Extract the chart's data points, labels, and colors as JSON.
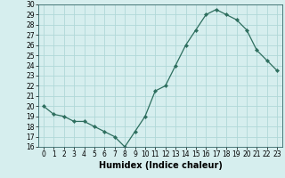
{
  "x": [
    0,
    1,
    2,
    3,
    4,
    5,
    6,
    7,
    8,
    9,
    10,
    11,
    12,
    13,
    14,
    15,
    16,
    17,
    18,
    19,
    20,
    21,
    22,
    23
  ],
  "y": [
    20.0,
    19.2,
    19.0,
    18.5,
    18.5,
    18.0,
    17.5,
    17.0,
    16.0,
    17.5,
    19.0,
    21.5,
    22.0,
    24.0,
    26.0,
    27.5,
    29.0,
    29.5,
    29.0,
    28.5,
    27.5,
    25.5,
    24.5,
    23.5
  ],
  "xlabel": "Humidex (Indice chaleur)",
  "xlim": [
    -0.5,
    23.5
  ],
  "ylim": [
    16,
    30
  ],
  "yticks": [
    16,
    17,
    18,
    19,
    20,
    21,
    22,
    23,
    24,
    25,
    26,
    27,
    28,
    29,
    30
  ],
  "xticks": [
    0,
    1,
    2,
    3,
    4,
    5,
    6,
    7,
    8,
    9,
    10,
    11,
    12,
    13,
    14,
    15,
    16,
    17,
    18,
    19,
    20,
    21,
    22,
    23
  ],
  "xtick_labels": [
    "0",
    "1",
    "2",
    "3",
    "4",
    "5",
    "6",
    "7",
    "8",
    "9",
    "10",
    "11",
    "12",
    "13",
    "14",
    "15",
    "16",
    "17",
    "18",
    "19",
    "20",
    "21",
    "22",
    "23"
  ],
  "line_color": "#2d6e5e",
  "marker_color": "#2d6e5e",
  "bg_color": "#d6eeee",
  "grid_color": "#b0d8d8",
  "tick_color": "#000000",
  "tick_fontsize": 5.5,
  "xlabel_fontsize": 7.0,
  "marker_size": 2.2,
  "linewidth": 0.9
}
